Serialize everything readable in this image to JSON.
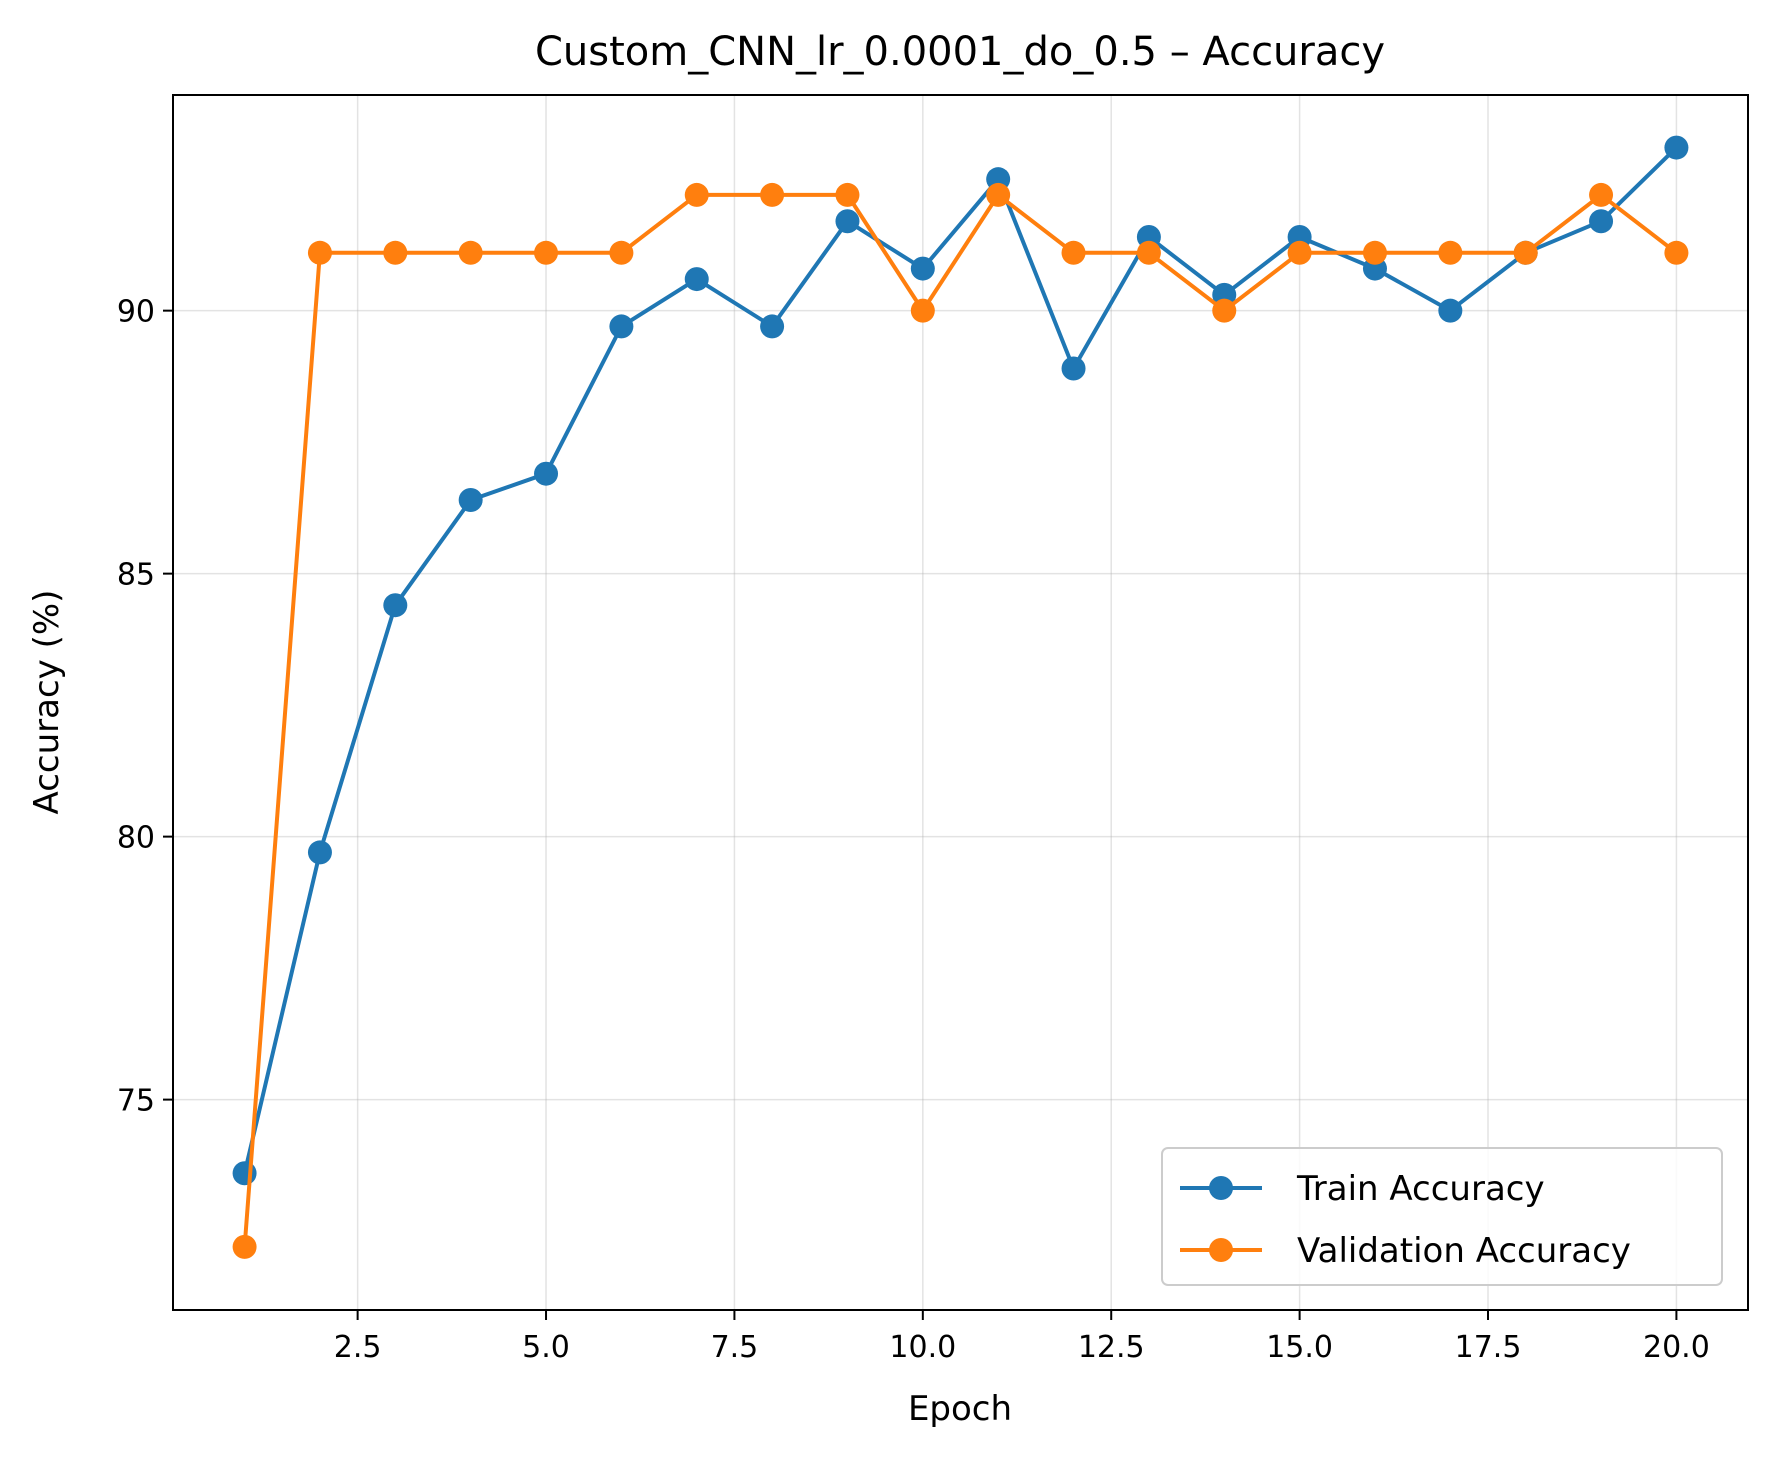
{
  "chart_data": {
    "type": "line",
    "title": "Custom_CNN_lr_0.0001_do_0.5 – Accuracy",
    "xlabel": "Epoch",
    "ylabel": "Accuracy (%)",
    "xlim": [
      0.05,
      20.95
    ],
    "ylim": [
      71.0,
      94.1
    ],
    "xticks": [
      2.5,
      5.0,
      7.5,
      10.0,
      12.5,
      15.0,
      17.5,
      20.0
    ],
    "xtick_labels": [
      "2.5",
      "5.0",
      "7.5",
      "10.0",
      "12.5",
      "15.0",
      "17.5",
      "20.0"
    ],
    "yticks": [
      75,
      80,
      85,
      90
    ],
    "ytick_labels": [
      "75",
      "80",
      "85",
      "90"
    ],
    "grid": true,
    "legend_position": "bottom-right",
    "x": [
      1,
      2,
      3,
      4,
      5,
      6,
      7,
      8,
      9,
      10,
      11,
      12,
      13,
      14,
      15,
      16,
      17,
      18,
      19,
      20
    ],
    "series": [
      {
        "name": "Train Accuracy",
        "color": "#1f77b4",
        "values": [
          73.6,
          79.7,
          84.4,
          86.4,
          86.9,
          89.7,
          90.6,
          89.7,
          91.7,
          90.8,
          92.5,
          88.9,
          91.4,
          90.3,
          91.4,
          90.8,
          90.0,
          91.1,
          91.7,
          93.1
        ]
      },
      {
        "name": "Validation Accuracy",
        "color": "#ff7f0e",
        "values": [
          72.2,
          91.1,
          91.1,
          91.1,
          91.1,
          91.1,
          92.2,
          92.2,
          92.2,
          90.0,
          92.2,
          91.1,
          91.1,
          90.0,
          91.1,
          91.1,
          91.1,
          91.1,
          92.2,
          91.1
        ]
      }
    ]
  }
}
